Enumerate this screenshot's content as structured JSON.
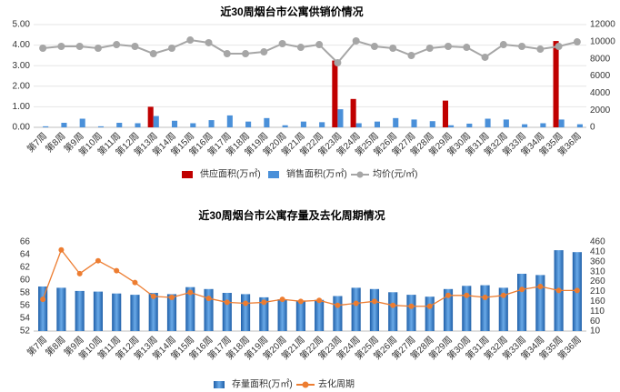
{
  "chart_data": [
    {
      "type": "combo",
      "title": "近30周烟台市公寓供销价情况",
      "categories": [
        "第7周",
        "第8周",
        "第9周",
        "第10周",
        "第11周",
        "第12周",
        "第13周",
        "第14周",
        "第15周",
        "第16周",
        "第17周",
        "第18周",
        "第19周",
        "第20周",
        "第21周",
        "第22周",
        "第23周",
        "第24周",
        "第25周",
        "第26周",
        "第27周",
        "第28周",
        "第29周",
        "第30周",
        "第31周",
        "第32周",
        "第33周",
        "第34周",
        "第35周",
        "第36周"
      ],
      "series": [
        {
          "name": "供应面积(万㎡)",
          "type": "bar",
          "color": "#c00000",
          "values": [
            0,
            0,
            0,
            0,
            0,
            0,
            1.0,
            0,
            0,
            0,
            0,
            0,
            0,
            0,
            0,
            0,
            3.25,
            1.38,
            0,
            0,
            0,
            0,
            1.3,
            0,
            0,
            0,
            0,
            0,
            4.2,
            0
          ]
        },
        {
          "name": "销售面积(万㎡)",
          "type": "bar",
          "color": "#4a90d9",
          "values": [
            0.05,
            0.22,
            0.42,
            0.05,
            0.22,
            0.2,
            0.55,
            0.32,
            0.2,
            0.35,
            0.58,
            0.28,
            0.45,
            0.1,
            0.28,
            0.25,
            0.88,
            0.2,
            0.28,
            0.45,
            0.38,
            0.3,
            0.1,
            0.18,
            0.42,
            0.38,
            0.15,
            0.2,
            0.38,
            0.15
          ]
        },
        {
          "name": "均价(元/㎡)",
          "type": "line",
          "axis": "y2",
          "color": "#a6a6a6",
          "values": [
            9240,
            9450,
            9450,
            9240,
            9660,
            9450,
            8600,
            9240,
            10190,
            9880,
            8600,
            8600,
            8810,
            9770,
            9340,
            9660,
            7540,
            10090,
            9450,
            9240,
            8390,
            9240,
            9450,
            9340,
            8180,
            9660,
            9450,
            9130,
            9450,
            9980
          ]
        }
      ],
      "ylim": [
        0,
        5
      ],
      "yticks": [
        {
          "value": 0,
          "label": "0.00"
        },
        {
          "value": 1,
          "label": "1.00"
        },
        {
          "value": 2,
          "label": "2.00"
        },
        {
          "value": 3,
          "label": "3.00"
        },
        {
          "value": 4,
          "label": "4.00"
        },
        {
          "value": 5,
          "label": "5.00"
        }
      ],
      "y2lim": [
        0,
        12000
      ],
      "y2ticks": [
        0,
        2000,
        4000,
        6000,
        8000,
        10000,
        12000
      ],
      "grid": true
    },
    {
      "type": "combo",
      "title": "近30周烟台市公寓存量及去化周期情况",
      "categories": [
        "第7周",
        "第8周",
        "第9周",
        "第10周",
        "第11周",
        "第12周",
        "第13周",
        "第14周",
        "第15周",
        "第16周",
        "第17周",
        "第18周",
        "第19周",
        "第20周",
        "第21周",
        "第22周",
        "第23周",
        "第24周",
        "第25周",
        "第26周",
        "第27周",
        "第28周",
        "第29周",
        "第30周",
        "第31周",
        "第32周",
        "第33周",
        "第34周",
        "第35周",
        "第36周"
      ],
      "series": [
        {
          "name": "存量面积(万㎡)",
          "type": "bar",
          "color": "#3a86d0",
          "values": [
            59.0,
            58.8,
            58.3,
            58.2,
            57.9,
            57.7,
            58.0,
            57.8,
            58.9,
            58.6,
            58.0,
            57.8,
            57.3,
            57.0,
            56.8,
            56.9,
            57.5,
            58.8,
            58.6,
            58.1,
            57.7,
            57.4,
            58.6,
            59.1,
            59.2,
            58.8,
            61.0,
            60.8,
            64.7,
            64.4
          ]
        },
        {
          "name": "去化周期",
          "type": "line",
          "axis": "y2",
          "color": "#ed7d31",
          "values": [
            170,
            420,
            300,
            365,
            315,
            255,
            185,
            180,
            205,
            175,
            155,
            150,
            155,
            170,
            160,
            165,
            140,
            150,
            160,
            140,
            135,
            135,
            190,
            190,
            180,
            190,
            220,
            235,
            215,
            215
          ]
        }
      ],
      "ylim": [
        52,
        66
      ],
      "yticks": [
        52,
        54,
        56,
        58,
        60,
        62,
        64,
        66
      ],
      "y2lim": [
        10,
        460
      ],
      "y2ticks": [
        10,
        60,
        110,
        160,
        210,
        260,
        310,
        360,
        410,
        460
      ],
      "grid": false
    }
  ]
}
